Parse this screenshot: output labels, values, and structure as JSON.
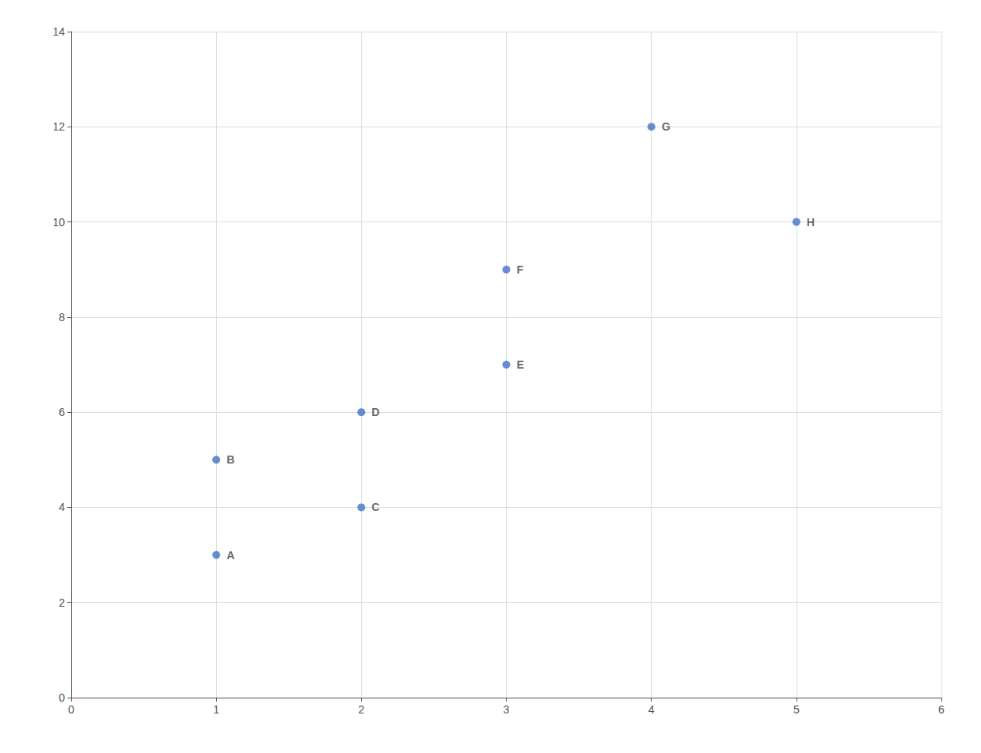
{
  "chart_data": {
    "type": "scatter",
    "x": [
      1,
      1,
      2,
      2,
      3,
      3,
      4,
      5
    ],
    "values": [
      3,
      5,
      4,
      6,
      7,
      9,
      12,
      10
    ],
    "labels": [
      "A",
      "B",
      "C",
      "D",
      "E",
      "F",
      "G",
      "H"
    ],
    "color": "#4472C4",
    "xlim": [
      0,
      6
    ],
    "xticks": [
      0,
      1,
      2,
      3,
      4,
      5,
      6
    ],
    "ylim": [
      0,
      14
    ],
    "yticks": [
      0,
      2,
      4,
      6,
      8,
      10,
      12,
      14
    ],
    "grid": true
  }
}
